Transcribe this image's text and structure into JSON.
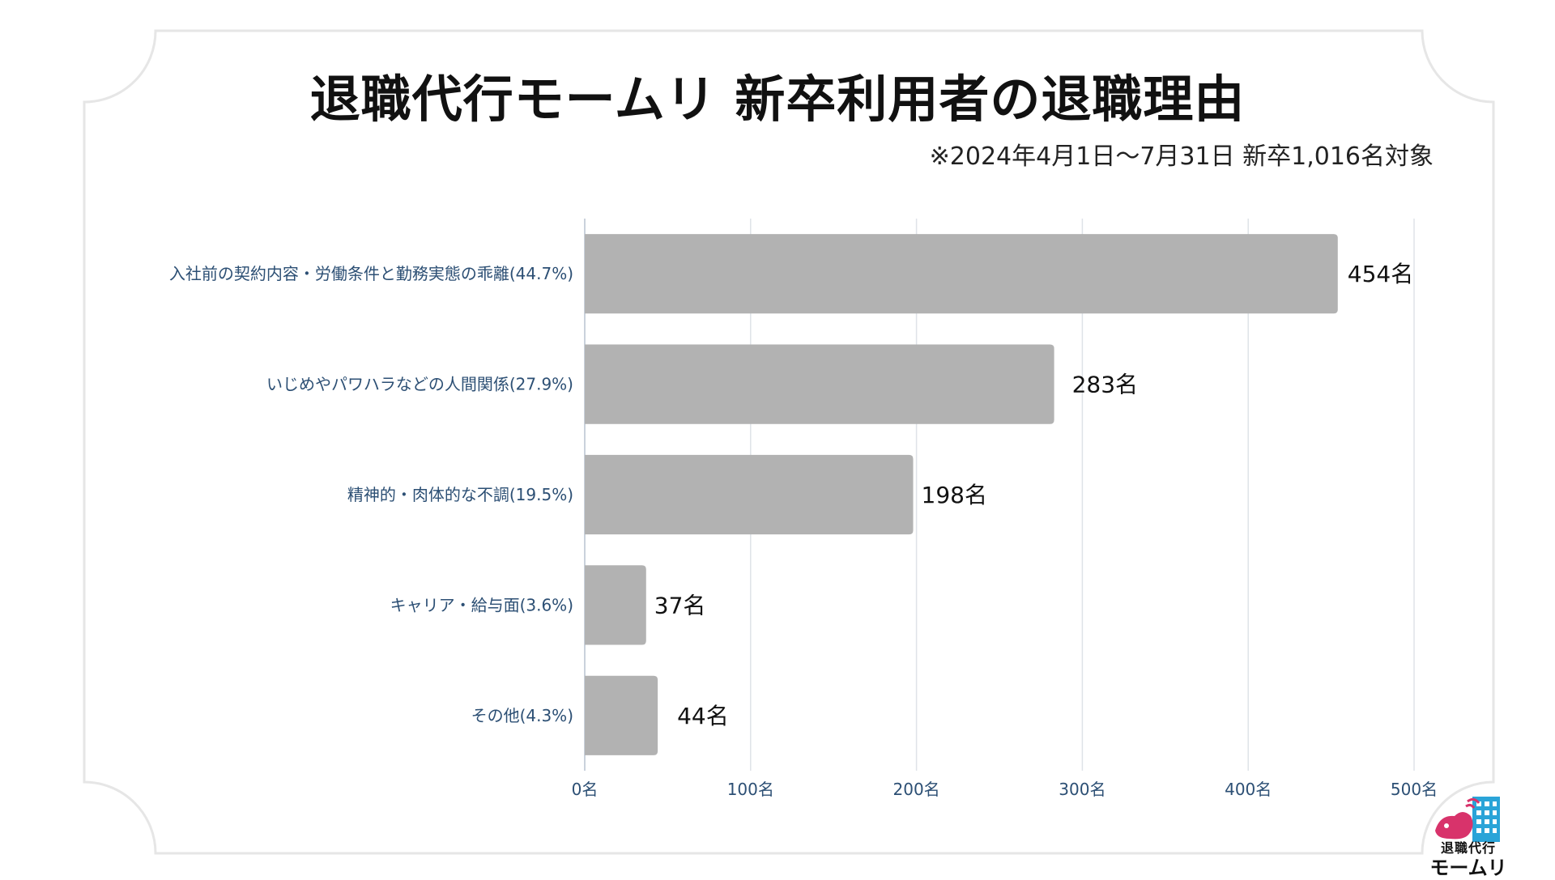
{
  "title": "退職代行モームリ 新卒利用者の退職理由",
  "subtitle": "※2024年4月1日～7月31日 新卒1,016名対象",
  "logo": {
    "line1": "退職代行",
    "line2": "モームリ"
  },
  "colors": {
    "bar": "#b2b2b2",
    "label": "#2c4f74",
    "grid": "#dfe3e8"
  },
  "chart_data": {
    "type": "bar",
    "orientation": "horizontal",
    "categories": [
      "入社前の契約内容・労働条件と勤務実態の乖離(44.7%)",
      "いじめやパワハラなどの人間関係(27.9%)",
      "精神的・肉体的な不調(19.5%)",
      "キャリア・給与面(3.6%)",
      "その他(4.3%)"
    ],
    "values": [
      454,
      283,
      198,
      37,
      44
    ],
    "value_labels": [
      "454名",
      "283名",
      "198名",
      "37名",
      "44名"
    ],
    "xticks": [
      0,
      100,
      200,
      300,
      400,
      500
    ],
    "xtick_labels": [
      "0名",
      "100名",
      "200名",
      "300名",
      "400名",
      "500名"
    ],
    "xlim": [
      0,
      500
    ],
    "grid": true
  }
}
